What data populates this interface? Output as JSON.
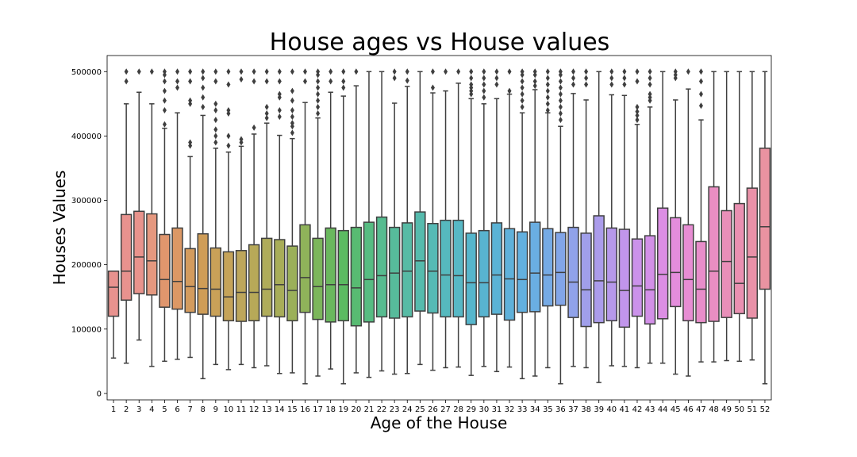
{
  "chart_data": {
    "type": "box",
    "title": "House ages vs House values",
    "xlabel": "Age of the House",
    "ylabel": "Houses Values",
    "ylim": [
      -10000,
      525000
    ],
    "yticks": [
      0,
      100000,
      200000,
      300000,
      400000,
      500000
    ],
    "tick_labels": [
      "0",
      "100000",
      "200000",
      "300000",
      "400000",
      "500000"
    ],
    "grid": false,
    "categories": [
      "1",
      "2",
      "3",
      "4",
      "5",
      "6",
      "7",
      "8",
      "9",
      "10",
      "11",
      "12",
      "13",
      "14",
      "15",
      "16",
      "17",
      "18",
      "19",
      "20",
      "21",
      "22",
      "23",
      "24",
      "25",
      "26",
      "27",
      "28",
      "29",
      "30",
      "31",
      "32",
      "33",
      "34",
      "35",
      "36",
      "37",
      "38",
      "39",
      "40",
      "41",
      "42",
      "43",
      "44",
      "45",
      "46",
      "47",
      "48",
      "49",
      "50",
      "51",
      "52"
    ],
    "colors": [
      "#e8928e",
      "#e8928e",
      "#e8938c",
      "#e5987f",
      "#e0966d",
      "#dc9865",
      "#d39b5e",
      "#cf9d57",
      "#c9a158",
      "#c5a359",
      "#bda65b",
      "#b7a958",
      "#afac5a",
      "#a8ad58",
      "#9bb059",
      "#8fb35a",
      "#7cb65b",
      "#6ab85e",
      "#5bbb61",
      "#58bb72",
      "#57bc82",
      "#57bc90",
      "#57bb9b",
      "#57bba5",
      "#56bbad",
      "#56bab5",
      "#56b9be",
      "#57b8c5",
      "#56b6cc",
      "#58b4d0",
      "#5bb3d5",
      "#5fb1da",
      "#63b0df",
      "#6aaee2",
      "#76aae5",
      "#82a5e8",
      "#90a2ea",
      "#a09fea",
      "#ab9ceb",
      "#b698eb",
      "#c195eb",
      "#cb92ea",
      "#d390e8",
      "#dc8ee4",
      "#e48ddc",
      "#e78dd3",
      "#e88dca",
      "#e98ec2",
      "#e98fb9",
      "#e990b1",
      "#e991a8",
      "#e993a1"
    ],
    "boxes": [
      {
        "q1": 120000,
        "median": 165000,
        "q3": 190000,
        "whisker_low": 55000,
        "whisker_high": 190000,
        "outliers": []
      },
      {
        "q1": 145000,
        "median": 190000,
        "q3": 278000,
        "whisker_low": 47000,
        "whisker_high": 450000,
        "outliers": [
          485000,
          500000
        ]
      },
      {
        "q1": 155000,
        "median": 212000,
        "q3": 283000,
        "whisker_low": 83000,
        "whisker_high": 468000,
        "outliers": [
          500000
        ]
      },
      {
        "q1": 153000,
        "median": 206000,
        "q3": 279000,
        "whisker_low": 42000,
        "whisker_high": 450000,
        "outliers": [
          500000
        ]
      },
      {
        "q1": 134000,
        "median": 177000,
        "q3": 247000,
        "whisker_low": 50000,
        "whisker_high": 412000,
        "outliers": [
          418000,
          440000,
          455000,
          470000,
          485000,
          495000,
          500000
        ]
      },
      {
        "q1": 131000,
        "median": 174000,
        "q3": 257000,
        "whisker_low": 53000,
        "whisker_high": 436000,
        "outliers": [
          475000,
          485000,
          500000
        ]
      },
      {
        "q1": 126000,
        "median": 166000,
        "q3": 225000,
        "whisker_low": 56000,
        "whisker_high": 368000,
        "outliers": [
          385000,
          390000,
          450000,
          455000,
          485000,
          500000
        ]
      },
      {
        "q1": 123000,
        "median": 163000,
        "q3": 248000,
        "whisker_low": 23000,
        "whisker_high": 432000,
        "outliers": [
          445000,
          460000,
          475000,
          490000,
          500000
        ]
      },
      {
        "q1": 120000,
        "median": 162000,
        "q3": 226000,
        "whisker_low": 45000,
        "whisker_high": 381000,
        "outliers": [
          390000,
          400000,
          410000,
          425000,
          440000,
          450000,
          485000,
          500000
        ]
      },
      {
        "q1": 113000,
        "median": 150000,
        "q3": 220000,
        "whisker_low": 37000,
        "whisker_high": 375000,
        "outliers": [
          385000,
          400000,
          435000,
          440000,
          480000,
          500000
        ]
      },
      {
        "q1": 112000,
        "median": 157000,
        "q3": 222000,
        "whisker_low": 45000,
        "whisker_high": 384000,
        "outliers": [
          390000,
          395000,
          488000,
          500000
        ]
      },
      {
        "q1": 113000,
        "median": 157000,
        "q3": 231000,
        "whisker_low": 40000,
        "whisker_high": 403000,
        "outliers": [
          413000,
          485000,
          500000
        ]
      },
      {
        "q1": 120000,
        "median": 162000,
        "q3": 241000,
        "whisker_low": 43000,
        "whisker_high": 420000,
        "outliers": [
          428000,
          435000,
          445000,
          485000,
          500000
        ]
      },
      {
        "q1": 119000,
        "median": 169000,
        "q3": 239000,
        "whisker_low": 31000,
        "whisker_high": 401000,
        "outliers": [
          430000,
          440000,
          460000,
          465000,
          485000,
          500000
        ]
      },
      {
        "q1": 113000,
        "median": 160000,
        "q3": 229000,
        "whisker_low": 32000,
        "whisker_high": 396000,
        "outliers": [
          405000,
          415000,
          420000,
          430000,
          440000,
          455000,
          470000,
          500000
        ]
      },
      {
        "q1": 126000,
        "median": 180000,
        "q3": 262000,
        "whisker_low": 15000,
        "whisker_high": 452000,
        "outliers": [
          485000,
          500000
        ]
      },
      {
        "q1": 115000,
        "median": 166000,
        "q3": 241000,
        "whisker_low": 27000,
        "whisker_high": 428000,
        "outliers": [
          435000,
          445000,
          455000,
          465000,
          475000,
          485000,
          495000,
          500000
        ]
      },
      {
        "q1": 111000,
        "median": 169000,
        "q3": 257000,
        "whisker_low": 38000,
        "whisker_high": 468000,
        "outliers": [
          485000,
          500000
        ]
      },
      {
        "q1": 113000,
        "median": 169000,
        "q3": 253000,
        "whisker_low": 15000,
        "whisker_high": 462000,
        "outliers": [
          475000,
          485000,
          500000
        ]
      },
      {
        "q1": 105000,
        "median": 164000,
        "q3": 258000,
        "whisker_low": 32000,
        "whisker_high": 478000,
        "outliers": [
          500000
        ]
      },
      {
        "q1": 111000,
        "median": 177000,
        "q3": 266000,
        "whisker_low": 25000,
        "whisker_high": 500000,
        "outliers": []
      },
      {
        "q1": 119000,
        "median": 183000,
        "q3": 274000,
        "whisker_low": 35000,
        "whisker_high": 500000,
        "outliers": []
      },
      {
        "q1": 117000,
        "median": 187000,
        "q3": 258000,
        "whisker_low": 30000,
        "whisker_high": 451000,
        "outliers": [
          490000,
          500000
        ]
      },
      {
        "q1": 119000,
        "median": 190000,
        "q3": 265000,
        "whisker_low": 31000,
        "whisker_high": 477000,
        "outliers": [
          486000,
          500000
        ]
      },
      {
        "q1": 128000,
        "median": 206000,
        "q3": 282000,
        "whisker_low": 45000,
        "whisker_high": 500000,
        "outliers": []
      },
      {
        "q1": 125000,
        "median": 190000,
        "q3": 264000,
        "whisker_low": 36000,
        "whisker_high": 467000,
        "outliers": [
          475000,
          500000
        ]
      },
      {
        "q1": 119000,
        "median": 184000,
        "q3": 269000,
        "whisker_low": 40000,
        "whisker_high": 470000,
        "outliers": [
          500000
        ]
      },
      {
        "q1": 119000,
        "median": 183000,
        "q3": 269000,
        "whisker_low": 41000,
        "whisker_high": 482000,
        "outliers": [
          500000
        ]
      },
      {
        "q1": 107000,
        "median": 172000,
        "q3": 249000,
        "whisker_low": 28000,
        "whisker_high": 458000,
        "outliers": [
          465000,
          470000,
          475000,
          480000,
          490000,
          500000
        ]
      },
      {
        "q1": 119000,
        "median": 172000,
        "q3": 253000,
        "whisker_low": 42000,
        "whisker_high": 450000,
        "outliers": [
          460000,
          470000,
          480000,
          490000,
          500000
        ]
      },
      {
        "q1": 123000,
        "median": 184000,
        "q3": 265000,
        "whisker_low": 34000,
        "whisker_high": 458000,
        "outliers": [
          480000,
          490000,
          500000
        ]
      },
      {
        "q1": 114000,
        "median": 178000,
        "q3": 256000,
        "whisker_low": 41000,
        "whisker_high": 465000,
        "outliers": [
          470000,
          500000
        ]
      },
      {
        "q1": 126000,
        "median": 177000,
        "q3": 251000,
        "whisker_low": 23000,
        "whisker_high": 436000,
        "outliers": [
          445000,
          455000,
          465000,
          475000,
          485000,
          495000,
          500000
        ]
      },
      {
        "q1": 127000,
        "median": 187000,
        "q3": 266000,
        "whisker_low": 27000,
        "whisker_high": 472000,
        "outliers": [
          478000,
          485000,
          495000,
          500000
        ]
      },
      {
        "q1": 136000,
        "median": 184000,
        "q3": 256000,
        "whisker_low": 40000,
        "whisker_high": 436000,
        "outliers": [
          440000,
          450000,
          460000,
          470000,
          480000,
          490000,
          500000
        ]
      },
      {
        "q1": 137000,
        "median": 188000,
        "q3": 250000,
        "whisker_low": 15000,
        "whisker_high": 415000,
        "outliers": [
          425000,
          435000,
          445000,
          455000,
          465000,
          475000,
          485000,
          495000,
          500000
        ]
      },
      {
        "q1": 118000,
        "median": 173000,
        "q3": 258000,
        "whisker_low": 42000,
        "whisker_high": 466000,
        "outliers": [
          480000,
          490000,
          500000
        ]
      },
      {
        "q1": 104000,
        "median": 161000,
        "q3": 249000,
        "whisker_low": 40000,
        "whisker_high": 456000,
        "outliers": [
          480000,
          490000,
          500000
        ]
      },
      {
        "q1": 110000,
        "median": 175000,
        "q3": 276000,
        "whisker_low": 17000,
        "whisker_high": 500000,
        "outliers": []
      },
      {
        "q1": 113000,
        "median": 173000,
        "q3": 257000,
        "whisker_low": 43000,
        "whisker_high": 464000,
        "outliers": [
          480000,
          490000,
          500000
        ]
      },
      {
        "q1": 103000,
        "median": 160000,
        "q3": 255000,
        "whisker_low": 42000,
        "whisker_high": 463000,
        "outliers": [
          480000,
          490000,
          500000
        ]
      },
      {
        "q1": 120000,
        "median": 167000,
        "q3": 240000,
        "whisker_low": 40000,
        "whisker_high": 418000,
        "outliers": [
          425000,
          432000,
          438000,
          445000,
          485000,
          500000
        ]
      },
      {
        "q1": 108000,
        "median": 161000,
        "q3": 245000,
        "whisker_low": 47000,
        "whisker_high": 445000,
        "outliers": [
          455000,
          460000,
          465000,
          480000,
          490000,
          500000
        ]
      },
      {
        "q1": 116000,
        "median": 185000,
        "q3": 288000,
        "whisker_low": 47000,
        "whisker_high": 500000,
        "outliers": []
      },
      {
        "q1": 135000,
        "median": 188000,
        "q3": 273000,
        "whisker_low": 30000,
        "whisker_high": 456000,
        "outliers": [
          490000,
          495000,
          500000
        ]
      },
      {
        "q1": 113000,
        "median": 177000,
        "q3": 262000,
        "whisker_low": 27000,
        "whisker_high": 473000,
        "outliers": [
          500000
        ]
      },
      {
        "q1": 110000,
        "median": 162000,
        "q3": 236000,
        "whisker_low": 49000,
        "whisker_high": 425000,
        "outliers": [
          447000,
          465000,
          485000,
          500000
        ]
      },
      {
        "q1": 112000,
        "median": 190000,
        "q3": 321000,
        "whisker_low": 49000,
        "whisker_high": 500000,
        "outliers": []
      },
      {
        "q1": 118000,
        "median": 205000,
        "q3": 284000,
        "whisker_low": 51000,
        "whisker_high": 500000,
        "outliers": []
      },
      {
        "q1": 124000,
        "median": 171000,
        "q3": 295000,
        "whisker_low": 50000,
        "whisker_high": 500000,
        "outliers": []
      },
      {
        "q1": 117000,
        "median": 212000,
        "q3": 319000,
        "whisker_low": 52000,
        "whisker_high": 500000,
        "outliers": []
      },
      {
        "q1": 162000,
        "median": 259000,
        "q3": 381000,
        "whisker_low": 15000,
        "whisker_high": 500000,
        "outliers": []
      }
    ]
  }
}
